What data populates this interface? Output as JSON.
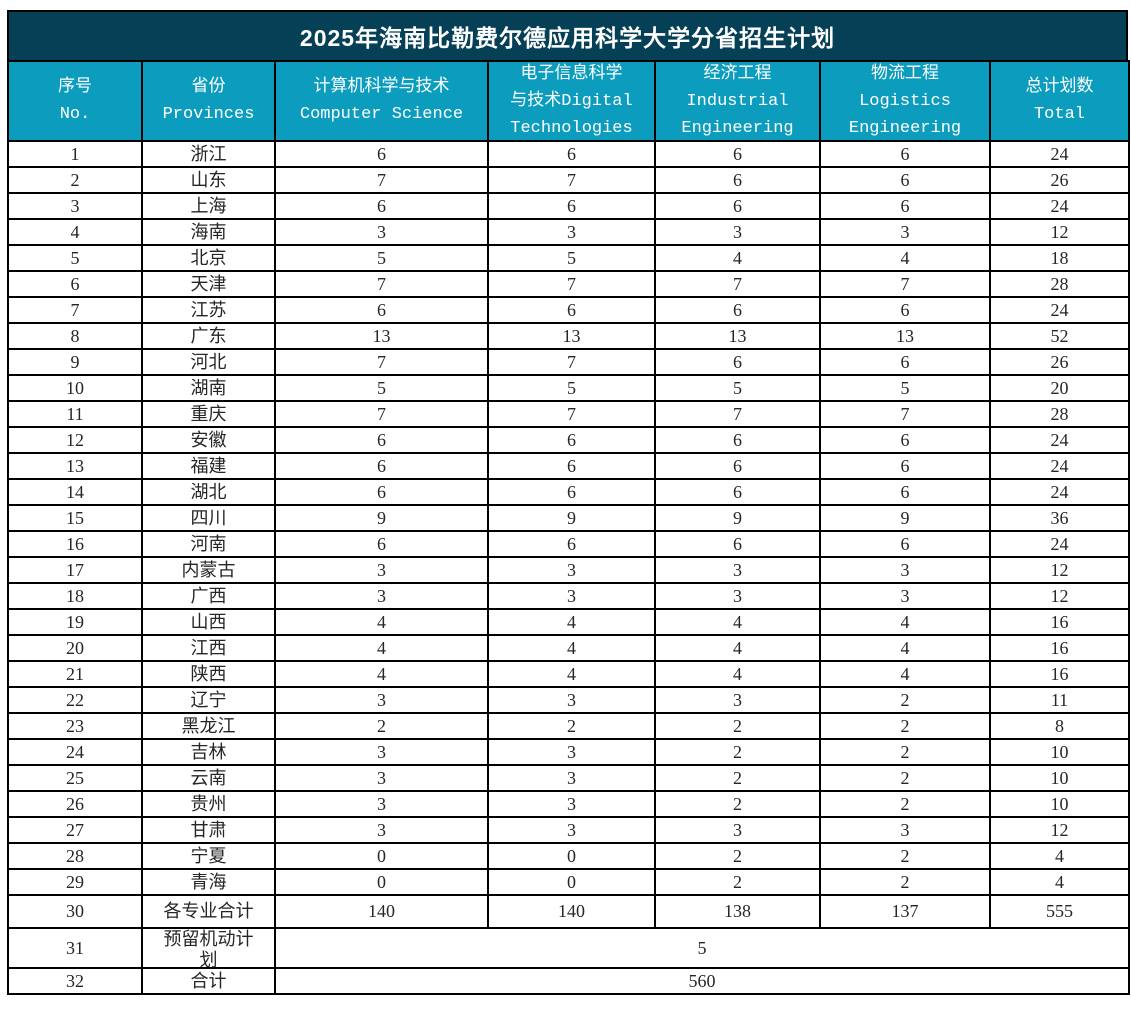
{
  "title": "2025年海南比勒费尔德应用科学大学分省招生计划",
  "colors": {
    "title_bar_bg": "#064056",
    "header_bg": "#0c9dbe",
    "header_text": "#ffffff",
    "grid_border": "#000000",
    "cell_text": "#262626",
    "cell_bg": "#ffffff"
  },
  "table": {
    "headers": [
      {
        "name": "no",
        "lines": [
          "序号",
          "No."
        ]
      },
      {
        "name": "provinces",
        "lines": [
          "省份",
          "Provinces"
        ]
      },
      {
        "name": "computer_science",
        "lines": [
          "计算机科学与技术",
          "Computer Science"
        ]
      },
      {
        "name": "digital_technologies",
        "lines": [
          "电子信息科学",
          "与技术Digital",
          "Technologies"
        ]
      },
      {
        "name": "industrial_engineering",
        "lines": [
          "经济工程",
          "Industrial",
          "Engineering"
        ]
      },
      {
        "name": "logistics_engineering",
        "lines": [
          "物流工程",
          "Logistics",
          "Engineering"
        ]
      },
      {
        "name": "total",
        "lines": [
          "总计划数",
          "Total"
        ]
      }
    ],
    "rows": [
      {
        "no": "1",
        "province": "浙江",
        "cs": "6",
        "dt": "6",
        "ie": "6",
        "le": "6",
        "total": "24"
      },
      {
        "no": "2",
        "province": "山东",
        "cs": "7",
        "dt": "7",
        "ie": "6",
        "le": "6",
        "total": "26"
      },
      {
        "no": "3",
        "province": "上海",
        "cs": "6",
        "dt": "6",
        "ie": "6",
        "le": "6",
        "total": "24"
      },
      {
        "no": "4",
        "province": "海南",
        "cs": "3",
        "dt": "3",
        "ie": "3",
        "le": "3",
        "total": "12"
      },
      {
        "no": "5",
        "province": "北京",
        "cs": "5",
        "dt": "5",
        "ie": "4",
        "le": "4",
        "total": "18"
      },
      {
        "no": "6",
        "province": "天津",
        "cs": "7",
        "dt": "7",
        "ie": "7",
        "le": "7",
        "total": "28"
      },
      {
        "no": "7",
        "province": "江苏",
        "cs": "6",
        "dt": "6",
        "ie": "6",
        "le": "6",
        "total": "24"
      },
      {
        "no": "8",
        "province": "广东",
        "cs": "13",
        "dt": "13",
        "ie": "13",
        "le": "13",
        "total": "52"
      },
      {
        "no": "9",
        "province": "河北",
        "cs": "7",
        "dt": "7",
        "ie": "6",
        "le": "6",
        "total": "26"
      },
      {
        "no": "10",
        "province": "湖南",
        "cs": "5",
        "dt": "5",
        "ie": "5",
        "le": "5",
        "total": "20"
      },
      {
        "no": "11",
        "province": "重庆",
        "cs": "7",
        "dt": "7",
        "ie": "7",
        "le": "7",
        "total": "28"
      },
      {
        "no": "12",
        "province": "安徽",
        "cs": "6",
        "dt": "6",
        "ie": "6",
        "le": "6",
        "total": "24"
      },
      {
        "no": "13",
        "province": "福建",
        "cs": "6",
        "dt": "6",
        "ie": "6",
        "le": "6",
        "total": "24"
      },
      {
        "no": "14",
        "province": "湖北",
        "cs": "6",
        "dt": "6",
        "ie": "6",
        "le": "6",
        "total": "24"
      },
      {
        "no": "15",
        "province": "四川",
        "cs": "9",
        "dt": "9",
        "ie": "9",
        "le": "9",
        "total": "36"
      },
      {
        "no": "16",
        "province": "河南",
        "cs": "6",
        "dt": "6",
        "ie": "6",
        "le": "6",
        "total": "24"
      },
      {
        "no": "17",
        "province": "内蒙古",
        "cs": "3",
        "dt": "3",
        "ie": "3",
        "le": "3",
        "total": "12"
      },
      {
        "no": "18",
        "province": "广西",
        "cs": "3",
        "dt": "3",
        "ie": "3",
        "le": "3",
        "total": "12"
      },
      {
        "no": "19",
        "province": "山西",
        "cs": "4",
        "dt": "4",
        "ie": "4",
        "le": "4",
        "total": "16"
      },
      {
        "no": "20",
        "province": "江西",
        "cs": "4",
        "dt": "4",
        "ie": "4",
        "le": "4",
        "total": "16"
      },
      {
        "no": "21",
        "province": "陕西",
        "cs": "4",
        "dt": "4",
        "ie": "4",
        "le": "4",
        "total": "16"
      },
      {
        "no": "22",
        "province": "辽宁",
        "cs": "3",
        "dt": "3",
        "ie": "3",
        "le": "2",
        "total": "11"
      },
      {
        "no": "23",
        "province": "黑龙江",
        "cs": "2",
        "dt": "2",
        "ie": "2",
        "le": "2",
        "total": "8"
      },
      {
        "no": "24",
        "province": "吉林",
        "cs": "3",
        "dt": "3",
        "ie": "2",
        "le": "2",
        "total": "10"
      },
      {
        "no": "25",
        "province": "云南",
        "cs": "3",
        "dt": "3",
        "ie": "2",
        "le": "2",
        "total": "10"
      },
      {
        "no": "26",
        "province": "贵州",
        "cs": "3",
        "dt": "3",
        "ie": "2",
        "le": "2",
        "total": "10"
      },
      {
        "no": "27",
        "province": "甘肃",
        "cs": "3",
        "dt": "3",
        "ie": "3",
        "le": "3",
        "total": "12"
      },
      {
        "no": "28",
        "province": "宁夏",
        "cs": "0",
        "dt": "0",
        "ie": "2",
        "le": "2",
        "total": "4"
      },
      {
        "no": "29",
        "province": "青海",
        "cs": "0",
        "dt": "0",
        "ie": "2",
        "le": "2",
        "total": "4"
      }
    ],
    "summary": {
      "per_major_total": {
        "no": "30",
        "label": "各专业合计",
        "cs": "140",
        "dt": "140",
        "ie": "138",
        "le": "137",
        "total": "555"
      },
      "reserved_plan": {
        "no": "31",
        "label": "预留机动计划",
        "value": "5"
      },
      "grand_total": {
        "no": "32",
        "label": "合计",
        "value": "560"
      }
    }
  }
}
